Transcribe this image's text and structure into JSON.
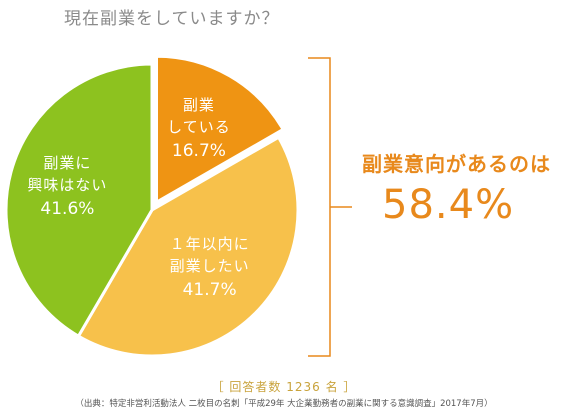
{
  "chart_data": {
    "type": "pie",
    "title": "現在副業をしていますか？",
    "slices": [
      {
        "label_lines": [
          "副業",
          "している"
        ],
        "value": 16.7,
        "value_label": "16.7%",
        "color": "#ef9413"
      },
      {
        "label_lines": [
          "１年以内に",
          "副業したい"
        ],
        "value": 41.7,
        "value_label": "41.7%",
        "color": "#f7c14b"
      },
      {
        "label_lines": [
          "副業に",
          "興味はない"
        ],
        "value": 41.6,
        "value_label": "41.6%",
        "color": "#8dc21f"
      }
    ],
    "annotation": {
      "label": "副業意向があるのは",
      "value": "58.4%",
      "color": "#e8891c"
    },
    "respondents": "［ 回答者数 1236 名 ］",
    "source": "（出典：特定非営利活動法人 二枚目の名刺「平成29年 大企業勤務者の副業に関する意識調査」2017年7月）"
  }
}
